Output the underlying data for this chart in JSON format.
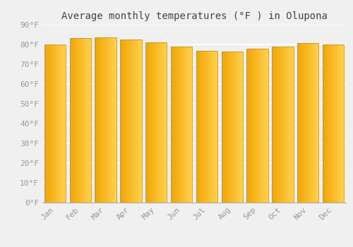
{
  "months": [
    "Jan",
    "Feb",
    "Mar",
    "Apr",
    "May",
    "Jun",
    "Jul",
    "Aug",
    "Sep",
    "Oct",
    "Nov",
    "Dec"
  ],
  "values": [
    80.1,
    83.3,
    83.7,
    82.4,
    81.1,
    78.8,
    76.8,
    76.5,
    77.9,
    79.0,
    80.8,
    79.9
  ],
  "bar_color_left": "#F0A500",
  "bar_color_right": "#FFD050",
  "bar_edge_color": "#C8922A",
  "background_color": "#f0f0f0",
  "grid_color": "#ffffff",
  "title": "Average monthly temperatures (°F ) in Olupona",
  "ylabel_ticks": [
    "0°F",
    "10°F",
    "20°F",
    "30°F",
    "40°F",
    "50°F",
    "60°F",
    "70°F",
    "80°F",
    "90°F"
  ],
  "ytick_values": [
    0,
    10,
    20,
    30,
    40,
    50,
    60,
    70,
    80,
    90
  ],
  "ylim": [
    0,
    90
  ],
  "title_fontsize": 10,
  "tick_fontsize": 8,
  "tick_color": "#999999",
  "font_family": "monospace",
  "bar_width": 0.85,
  "figsize": [
    5.0,
    3.5
  ],
  "dpi": 100
}
